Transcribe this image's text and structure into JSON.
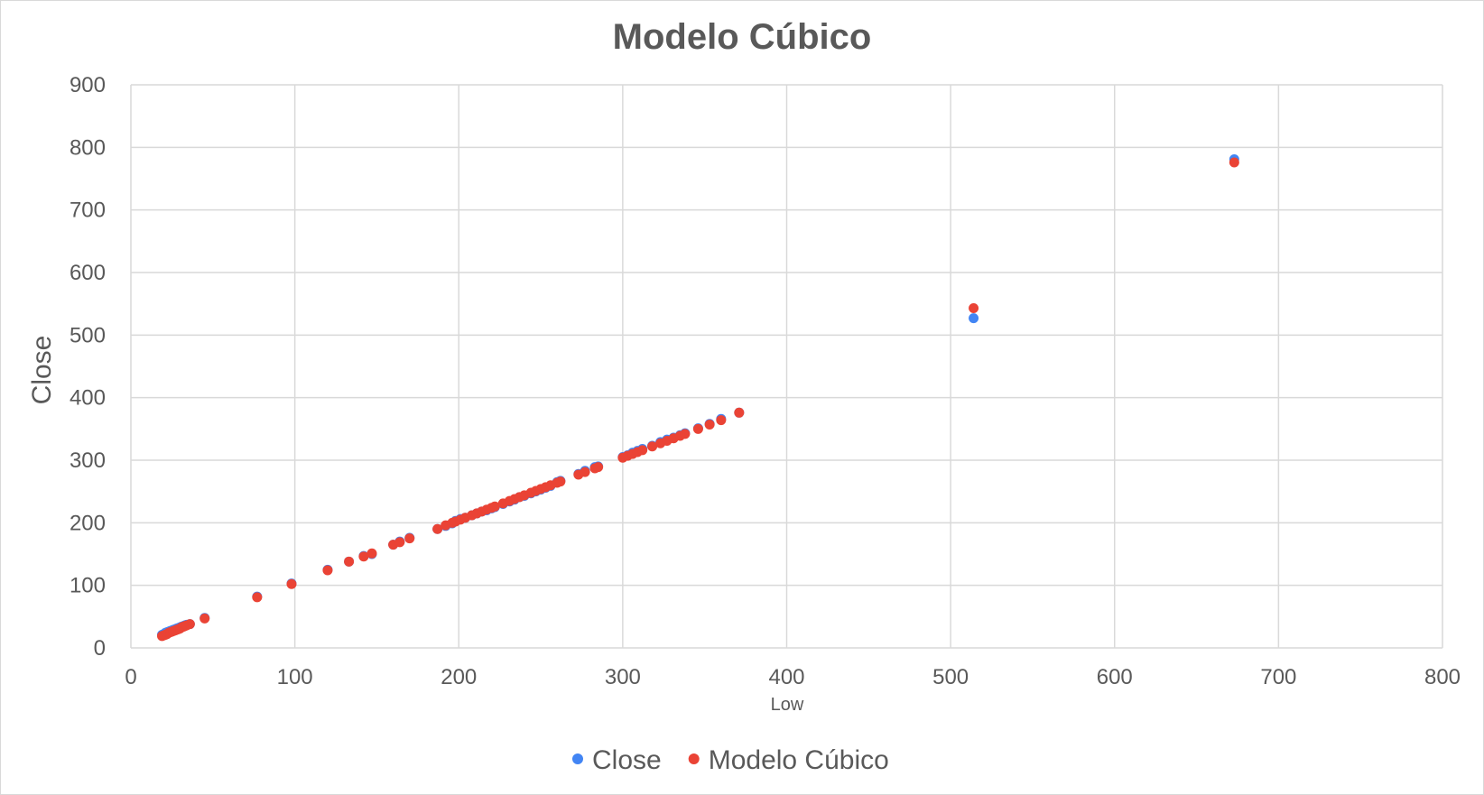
{
  "chart_data": {
    "type": "scatter",
    "title": "Modelo Cúbico",
    "xlabel": "Low",
    "ylabel": "Close",
    "xlim": [
      0,
      800
    ],
    "ylim": [
      0,
      900
    ],
    "xticks": [
      0,
      100,
      200,
      300,
      400,
      500,
      600,
      700,
      800
    ],
    "yticks": [
      0,
      100,
      200,
      300,
      400,
      500,
      600,
      700,
      800,
      900
    ],
    "grid": true,
    "legend_position": "bottom",
    "series": [
      {
        "name": "Close",
        "color": "#4285f4",
        "points": [
          [
            19,
            21
          ],
          [
            20,
            22
          ],
          [
            21,
            24
          ],
          [
            22,
            25
          ],
          [
            23,
            26
          ],
          [
            24,
            27
          ],
          [
            25,
            28
          ],
          [
            26,
            29
          ],
          [
            27,
            30
          ],
          [
            28,
            31
          ],
          [
            29,
            32
          ],
          [
            30,
            33
          ],
          [
            31,
            34
          ],
          [
            32,
            35
          ],
          [
            33,
            36
          ],
          [
            34,
            37
          ],
          [
            36,
            38
          ],
          [
            45,
            48
          ],
          [
            77,
            82
          ],
          [
            98,
            103
          ],
          [
            120,
            125
          ],
          [
            133,
            138
          ],
          [
            142,
            147
          ],
          [
            147,
            150
          ],
          [
            160,
            165
          ],
          [
            164,
            170
          ],
          [
            170,
            176
          ],
          [
            187,
            190
          ],
          [
            192,
            195
          ],
          [
            196,
            199
          ],
          [
            198,
            203
          ],
          [
            201,
            206
          ],
          [
            204,
            208
          ],
          [
            208,
            212
          ],
          [
            211,
            215
          ],
          [
            214,
            218
          ],
          [
            217,
            220
          ],
          [
            220,
            223
          ],
          [
            222,
            225
          ],
          [
            227,
            230
          ],
          [
            231,
            234
          ],
          [
            234,
            237
          ],
          [
            237,
            241
          ],
          [
            240,
            243
          ],
          [
            244,
            247
          ],
          [
            247,
            250
          ],
          [
            250,
            253
          ],
          [
            253,
            256
          ],
          [
            256,
            259
          ],
          [
            260,
            265
          ],
          [
            262,
            267
          ],
          [
            273,
            278
          ],
          [
            277,
            283
          ],
          [
            283,
            289
          ],
          [
            285,
            290
          ],
          [
            300,
            305
          ],
          [
            303,
            308
          ],
          [
            306,
            312
          ],
          [
            309,
            315
          ],
          [
            312,
            318
          ],
          [
            318,
            323
          ],
          [
            323,
            329
          ],
          [
            327,
            333
          ],
          [
            331,
            336
          ],
          [
            335,
            340
          ],
          [
            338,
            343
          ],
          [
            346,
            351
          ],
          [
            353,
            358
          ],
          [
            360,
            366
          ],
          [
            371,
            376
          ],
          [
            514,
            527
          ],
          [
            673,
            781
          ]
        ]
      },
      {
        "name": "Modelo Cúbico",
        "color": "#ea4335",
        "points": [
          [
            19,
            19
          ],
          [
            20,
            20
          ],
          [
            21,
            21
          ],
          [
            22,
            22
          ],
          [
            23,
            24
          ],
          [
            24,
            25
          ],
          [
            25,
            26
          ],
          [
            26,
            27
          ],
          [
            27,
            28
          ],
          [
            28,
            29
          ],
          [
            29,
            30
          ],
          [
            30,
            31
          ],
          [
            31,
            33
          ],
          [
            32,
            34
          ],
          [
            33,
            35
          ],
          [
            34,
            36
          ],
          [
            36,
            38
          ],
          [
            45,
            47
          ],
          [
            77,
            81
          ],
          [
            98,
            102
          ],
          [
            120,
            124
          ],
          [
            133,
            138
          ],
          [
            142,
            146
          ],
          [
            147,
            151
          ],
          [
            160,
            165
          ],
          [
            164,
            169
          ],
          [
            170,
            175
          ],
          [
            187,
            190
          ],
          [
            192,
            196
          ],
          [
            196,
            200
          ],
          [
            198,
            202
          ],
          [
            201,
            205
          ],
          [
            204,
            208
          ],
          [
            208,
            212
          ],
          [
            211,
            215
          ],
          [
            214,
            218
          ],
          [
            217,
            221
          ],
          [
            220,
            224
          ],
          [
            222,
            226
          ],
          [
            227,
            231
          ],
          [
            231,
            235
          ],
          [
            234,
            238
          ],
          [
            237,
            241
          ],
          [
            240,
            244
          ],
          [
            244,
            248
          ],
          [
            247,
            251
          ],
          [
            250,
            254
          ],
          [
            253,
            257
          ],
          [
            256,
            260
          ],
          [
            260,
            264
          ],
          [
            262,
            266
          ],
          [
            273,
            277
          ],
          [
            277,
            281
          ],
          [
            283,
            287
          ],
          [
            285,
            289
          ],
          [
            300,
            304
          ],
          [
            303,
            307
          ],
          [
            306,
            310
          ],
          [
            309,
            313
          ],
          [
            312,
            316
          ],
          [
            318,
            322
          ],
          [
            323,
            327
          ],
          [
            327,
            331
          ],
          [
            331,
            335
          ],
          [
            335,
            339
          ],
          [
            338,
            342
          ],
          [
            346,
            350
          ],
          [
            353,
            357
          ],
          [
            360,
            364
          ],
          [
            371,
            376
          ],
          [
            514,
            543
          ],
          [
            673,
            776
          ]
        ]
      }
    ]
  }
}
